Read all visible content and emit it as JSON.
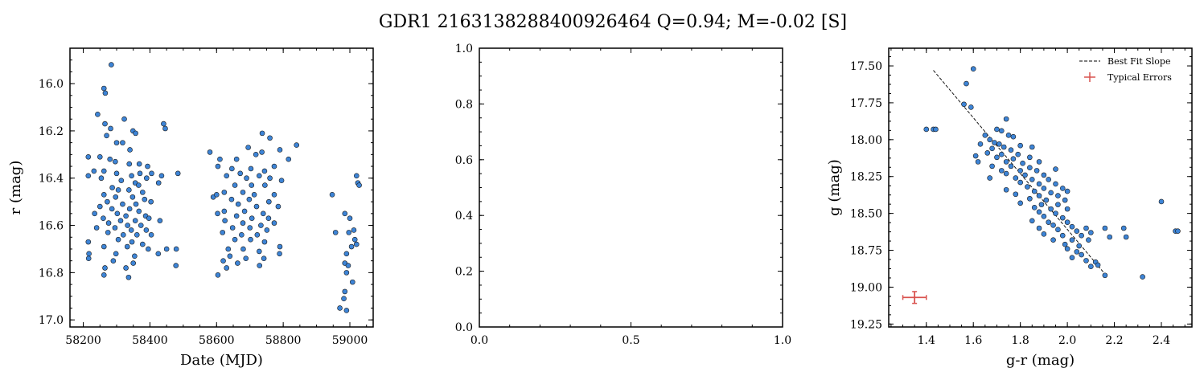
{
  "figure": {
    "title": "GDR1 2163138288400926464  Q=0.94; M=-0.02 [S]"
  },
  "colors": {
    "marker_fill": "#3d84d6",
    "marker_edge": "#1a1a1a",
    "fit_line": "#000000",
    "error_marker": "#d9534f"
  },
  "chart_data": [
    {
      "type": "scatter",
      "xlabel": "Date (MJD)",
      "ylabel": "r (mag)",
      "xlim": [
        58160,
        59070
      ],
      "ylim": [
        17.03,
        15.85
      ],
      "y_inverted": true,
      "xticks": [
        58200,
        58400,
        58600,
        58800,
        59000
      ],
      "xtick_labels": [
        "58200",
        "58400",
        "58600",
        "58800",
        "59000"
      ],
      "yticks": [
        16.0,
        16.2,
        16.4,
        16.6,
        16.8,
        17.0
      ],
      "ytick_labels": [
        "16.0",
        "16.2",
        "16.4",
        "16.6",
        "16.8",
        "17.0"
      ],
      "points": [
        [
          58284,
          15.92
        ],
        [
          58262,
          16.02
        ],
        [
          58266,
          16.04
        ],
        [
          58243,
          16.13
        ],
        [
          58323,
          16.15
        ],
        [
          58265,
          16.17
        ],
        [
          58282,
          16.19
        ],
        [
          58441,
          16.17
        ],
        [
          58446,
          16.19
        ],
        [
          58349,
          16.2
        ],
        [
          58357,
          16.21
        ],
        [
          58270,
          16.22
        ],
        [
          58300,
          16.25
        ],
        [
          58318,
          16.25
        ],
        [
          58340,
          16.28
        ],
        [
          58250,
          16.31
        ],
        [
          58215,
          16.31
        ],
        [
          58280,
          16.32
        ],
        [
          58296,
          16.33
        ],
        [
          58338,
          16.34
        ],
        [
          58368,
          16.34
        ],
        [
          58393,
          16.35
        ],
        [
          58232,
          16.37
        ],
        [
          58262,
          16.37
        ],
        [
          58300,
          16.38
        ],
        [
          58345,
          16.39
        ],
        [
          58370,
          16.38
        ],
        [
          58405,
          16.38
        ],
        [
          58435,
          16.39
        ],
        [
          58484,
          16.38
        ],
        [
          58215,
          16.39
        ],
        [
          58254,
          16.4
        ],
        [
          58314,
          16.41
        ],
        [
          58356,
          16.42
        ],
        [
          58366,
          16.43
        ],
        [
          58390,
          16.4
        ],
        [
          58426,
          16.42
        ],
        [
          58287,
          16.44
        ],
        [
          58305,
          16.45
        ],
        [
          58337,
          16.45
        ],
        [
          58378,
          16.46
        ],
        [
          58262,
          16.47
        ],
        [
          58297,
          16.48
        ],
        [
          58348,
          16.48
        ],
        [
          58384,
          16.49
        ],
        [
          58272,
          16.5
        ],
        [
          58318,
          16.51
        ],
        [
          58358,
          16.51
        ],
        [
          58403,
          16.5
        ],
        [
          58250,
          16.52
        ],
        [
          58286,
          16.53
        ],
        [
          58339,
          16.53
        ],
        [
          58367,
          16.54
        ],
        [
          58234,
          16.55
        ],
        [
          58302,
          16.55
        ],
        [
          58328,
          16.56
        ],
        [
          58387,
          16.56
        ],
        [
          58260,
          16.57
        ],
        [
          58312,
          16.58
        ],
        [
          58356,
          16.58
        ],
        [
          58397,
          16.57
        ],
        [
          58276,
          16.59
        ],
        [
          58333,
          16.6
        ],
        [
          58373,
          16.6
        ],
        [
          58430,
          16.58
        ],
        [
          58240,
          16.61
        ],
        [
          58295,
          16.61
        ],
        [
          58344,
          16.62
        ],
        [
          58389,
          16.62
        ],
        [
          58274,
          16.63
        ],
        [
          58320,
          16.64
        ],
        [
          58361,
          16.64
        ],
        [
          58404,
          16.64
        ],
        [
          58305,
          16.66
        ],
        [
          58346,
          16.67
        ],
        [
          58378,
          16.68
        ],
        [
          58215,
          16.67
        ],
        [
          58262,
          16.69
        ],
        [
          58332,
          16.69
        ],
        [
          58395,
          16.7
        ],
        [
          58450,
          16.7
        ],
        [
          58479,
          16.7
        ],
        [
          58217,
          16.72
        ],
        [
          58298,
          16.72
        ],
        [
          58354,
          16.73
        ],
        [
          58425,
          16.72
        ],
        [
          58216,
          16.74
        ],
        [
          58290,
          16.75
        ],
        [
          58350,
          16.76
        ],
        [
          58478,
          16.77
        ],
        [
          58265,
          16.78
        ],
        [
          58328,
          16.78
        ],
        [
          58262,
          16.81
        ],
        [
          58336,
          16.82
        ],
        [
          58580,
          16.29
        ],
        [
          58610,
          16.32
        ],
        [
          58660,
          16.32
        ],
        [
          58718,
          16.3
        ],
        [
          58736,
          16.29
        ],
        [
          58790,
          16.28
        ],
        [
          58840,
          16.26
        ],
        [
          58760,
          16.23
        ],
        [
          58737,
          16.21
        ],
        [
          58695,
          16.27
        ],
        [
          58604,
          16.35
        ],
        [
          58646,
          16.36
        ],
        [
          58671,
          16.38
        ],
        [
          58703,
          16.36
        ],
        [
          58744,
          16.37
        ],
        [
          58773,
          16.35
        ],
        [
          58816,
          16.32
        ],
        [
          58630,
          16.39
        ],
        [
          58690,
          16.4
        ],
        [
          58728,
          16.39
        ],
        [
          58760,
          16.4
        ],
        [
          58795,
          16.41
        ],
        [
          58655,
          16.43
        ],
        [
          58705,
          16.43
        ],
        [
          58745,
          16.43
        ],
        [
          58623,
          16.46
        ],
        [
          58679,
          16.46
        ],
        [
          58713,
          16.47
        ],
        [
          58773,
          16.47
        ],
        [
          58590,
          16.48
        ],
        [
          58645,
          16.49
        ],
        [
          58698,
          16.49
        ],
        [
          58757,
          16.5
        ],
        [
          58600,
          16.47
        ],
        [
          58665,
          16.51
        ],
        [
          58720,
          16.52
        ],
        [
          58785,
          16.52
        ],
        [
          58623,
          16.54
        ],
        [
          58684,
          16.54
        ],
        [
          58740,
          16.55
        ],
        [
          58603,
          16.55
        ],
        [
          58660,
          16.56
        ],
        [
          58706,
          16.57
        ],
        [
          58756,
          16.57
        ],
        [
          58625,
          16.58
        ],
        [
          58679,
          16.59
        ],
        [
          58733,
          16.6
        ],
        [
          58773,
          16.59
        ],
        [
          58648,
          16.61
        ],
        [
          58700,
          16.61
        ],
        [
          58751,
          16.62
        ],
        [
          58618,
          16.63
        ],
        [
          58675,
          16.64
        ],
        [
          58722,
          16.64
        ],
        [
          58655,
          16.66
        ],
        [
          58702,
          16.66
        ],
        [
          58744,
          16.67
        ],
        [
          58790,
          16.69
        ],
        [
          58635,
          16.7
        ],
        [
          58680,
          16.7
        ],
        [
          58728,
          16.71
        ],
        [
          58789,
          16.72
        ],
        [
          58640,
          16.73
        ],
        [
          58688,
          16.74
        ],
        [
          58742,
          16.74
        ],
        [
          58620,
          16.75
        ],
        [
          58663,
          16.76
        ],
        [
          58729,
          16.77
        ],
        [
          58630,
          16.78
        ],
        [
          58604,
          16.81
        ],
        [
          58947,
          16.47
        ],
        [
          59020,
          16.39
        ],
        [
          59024,
          16.42
        ],
        [
          59028,
          16.43
        ],
        [
          58985,
          16.55
        ],
        [
          59000,
          16.57
        ],
        [
          58957,
          16.63
        ],
        [
          58997,
          16.63
        ],
        [
          59012,
          16.62
        ],
        [
          59015,
          16.66
        ],
        [
          59005,
          16.69
        ],
        [
          59020,
          16.68
        ],
        [
          58990,
          16.72
        ],
        [
          58985,
          16.76
        ],
        [
          58995,
          16.77
        ],
        [
          58990,
          16.8
        ],
        [
          59008,
          16.84
        ],
        [
          58985,
          16.88
        ],
        [
          58982,
          16.91
        ],
        [
          58970,
          16.95
        ],
        [
          58990,
          16.96
        ]
      ]
    },
    {
      "type": "scatter",
      "xlabel": "",
      "ylabel": "",
      "xlim": [
        0,
        1
      ],
      "ylim": [
        0,
        1
      ],
      "xticks": [
        0,
        0.5,
        1.0
      ],
      "xtick_labels": [
        "0.0",
        "0.5",
        "1.0"
      ],
      "yticks": [
        0,
        0.2,
        0.4,
        0.6,
        0.8,
        1.0
      ],
      "ytick_labels": [
        "0.0",
        "0.2",
        "0.4",
        "0.6",
        "0.8",
        "1.0"
      ],
      "points": []
    },
    {
      "type": "scatter",
      "xlabel": "g-r (mag)",
      "ylabel": "g (mag)",
      "xlim": [
        1.24,
        2.53
      ],
      "ylim": [
        19.27,
        17.38
      ],
      "y_inverted": true,
      "xticks": [
        1.4,
        1.6,
        1.8,
        2.0,
        2.2,
        2.4
      ],
      "xtick_labels": [
        "1.4",
        "1.6",
        "1.8",
        "2.0",
        "2.2",
        "2.4"
      ],
      "yticks": [
        17.5,
        17.75,
        18.0,
        18.25,
        18.5,
        18.75,
        19.0,
        19.25
      ],
      "ytick_labels": [
        "17.50",
        "17.75",
        "18.00",
        "18.25",
        "18.50",
        "18.75",
        "19.00",
        "19.25"
      ],
      "fit_line": {
        "label": "Best Fit Slope",
        "x": [
          1.43,
          2.17
        ],
        "y": [
          17.53,
          18.93
        ]
      },
      "typical_error": {
        "label": "Typical Errors",
        "x": 1.35,
        "y": 19.07,
        "xerr": 0.05,
        "yerr": 0.04
      },
      "legend_position": "top-right",
      "points": [
        [
          1.6,
          17.52
        ],
        [
          1.57,
          17.62
        ],
        [
          1.56,
          17.76
        ],
        [
          1.59,
          17.78
        ],
        [
          1.4,
          17.93
        ],
        [
          1.43,
          17.93
        ],
        [
          1.44,
          17.93
        ],
        [
          1.74,
          17.86
        ],
        [
          1.7,
          17.93
        ],
        [
          1.72,
          17.94
        ],
        [
          1.65,
          17.97
        ],
        [
          1.75,
          17.97
        ],
        [
          1.77,
          17.98
        ],
        [
          1.67,
          18.0
        ],
        [
          1.69,
          18.02
        ],
        [
          1.71,
          18.03
        ],
        [
          1.63,
          18.03
        ],
        [
          1.73,
          18.05
        ],
        [
          1.8,
          18.04
        ],
        [
          1.85,
          18.05
        ],
        [
          1.68,
          18.06
        ],
        [
          1.76,
          18.07
        ],
        [
          1.66,
          18.09
        ],
        [
          1.72,
          18.1
        ],
        [
          1.79,
          18.1
        ],
        [
          1.61,
          18.11
        ],
        [
          1.7,
          18.12
        ],
        [
          1.77,
          18.13
        ],
        [
          1.84,
          18.12
        ],
        [
          1.62,
          18.15
        ],
        [
          1.74,
          18.15
        ],
        [
          1.81,
          18.16
        ],
        [
          1.88,
          18.15
        ],
        [
          1.68,
          18.18
        ],
        [
          1.76,
          18.18
        ],
        [
          1.84,
          18.19
        ],
        [
          1.72,
          18.21
        ],
        [
          1.8,
          18.21
        ],
        [
          1.87,
          18.21
        ],
        [
          1.95,
          18.2
        ],
        [
          1.74,
          18.23
        ],
        [
          1.82,
          18.24
        ],
        [
          1.9,
          18.24
        ],
        [
          1.67,
          18.26
        ],
        [
          1.78,
          18.26
        ],
        [
          1.85,
          18.27
        ],
        [
          1.92,
          18.27
        ],
        [
          1.8,
          18.29
        ],
        [
          1.88,
          18.3
        ],
        [
          1.95,
          18.3
        ],
        [
          1.83,
          18.32
        ],
        [
          1.9,
          18.33
        ],
        [
          1.98,
          18.33
        ],
        [
          1.74,
          18.34
        ],
        [
          1.86,
          18.35
        ],
        [
          1.93,
          18.36
        ],
        [
          2.0,
          18.35
        ],
        [
          1.78,
          18.37
        ],
        [
          1.88,
          18.38
        ],
        [
          1.96,
          18.38
        ],
        [
          1.84,
          18.4
        ],
        [
          1.91,
          18.41
        ],
        [
          1.99,
          18.41
        ],
        [
          1.8,
          18.43
        ],
        [
          1.89,
          18.44
        ],
        [
          1.96,
          18.44
        ],
        [
          1.86,
          18.46
        ],
        [
          1.93,
          18.47
        ],
        [
          2.0,
          18.47
        ],
        [
          1.88,
          18.49
        ],
        [
          1.95,
          18.5
        ],
        [
          1.9,
          18.52
        ],
        [
          1.98,
          18.53
        ],
        [
          1.85,
          18.55
        ],
        [
          1.92,
          18.56
        ],
        [
          2.0,
          18.56
        ],
        [
          1.94,
          18.58
        ],
        [
          2.02,
          18.59
        ],
        [
          1.88,
          18.6
        ],
        [
          1.96,
          18.61
        ],
        [
          2.04,
          18.62
        ],
        [
          2.08,
          18.6
        ],
        [
          2.16,
          18.6
        ],
        [
          2.24,
          18.6
        ],
        [
          2.1,
          18.63
        ],
        [
          1.9,
          18.64
        ],
        [
          1.98,
          18.65
        ],
        [
          2.06,
          18.65
        ],
        [
          2.18,
          18.66
        ],
        [
          2.25,
          18.66
        ],
        [
          1.94,
          18.68
        ],
        [
          2.02,
          18.68
        ],
        [
          2.09,
          18.68
        ],
        [
          1.99,
          18.71
        ],
        [
          2.05,
          18.72
        ],
        [
          2.0,
          18.74
        ],
        [
          2.04,
          18.76
        ],
        [
          2.06,
          18.78
        ],
        [
          2.02,
          18.8
        ],
        [
          2.08,
          18.82
        ],
        [
          2.12,
          18.83
        ],
        [
          2.1,
          18.86
        ],
        [
          2.13,
          18.85
        ],
        [
          2.16,
          18.92
        ],
        [
          2.32,
          18.93
        ],
        [
          2.4,
          18.42
        ],
        [
          2.46,
          18.62
        ],
        [
          2.47,
          18.62
        ]
      ]
    }
  ]
}
